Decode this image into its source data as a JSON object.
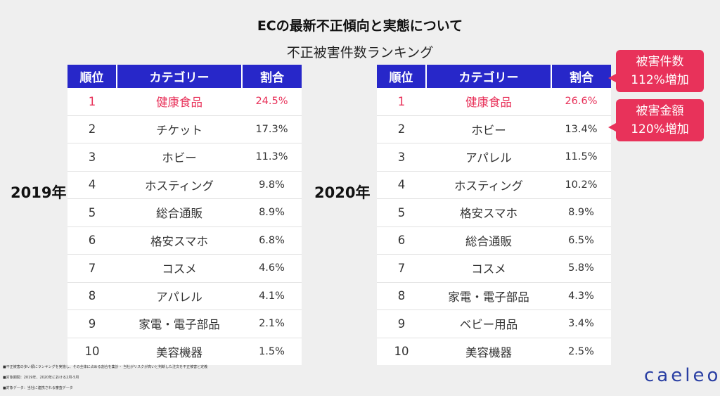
{
  "title": "ECの最新不正傾向と実態について",
  "subtitle": "不正被害件数ランキング",
  "headers": {
    "rank": "順位",
    "category": "カテゴリー",
    "ratio": "割合"
  },
  "year2019": {
    "label": "2019年",
    "rows": [
      {
        "rank": "1",
        "category": "健康食品",
        "ratio": "24.5%"
      },
      {
        "rank": "2",
        "category": "チケット",
        "ratio": "17.3%"
      },
      {
        "rank": "3",
        "category": "ホビー",
        "ratio": "11.3%"
      },
      {
        "rank": "4",
        "category": "ホスティング",
        "ratio": "9.8%"
      },
      {
        "rank": "5",
        "category": "総合通販",
        "ratio": "8.9%"
      },
      {
        "rank": "6",
        "category": "格安スマホ",
        "ratio": "6.8%"
      },
      {
        "rank": "7",
        "category": "コスメ",
        "ratio": "4.6%"
      },
      {
        "rank": "8",
        "category": "アパレル",
        "ratio": "4.1%"
      },
      {
        "rank": "9",
        "category": "家電・電子部品",
        "ratio": "2.1%"
      },
      {
        "rank": "10",
        "category": "美容機器",
        "ratio": "1.5%"
      }
    ]
  },
  "year2020": {
    "label": "2020年",
    "rows": [
      {
        "rank": "1",
        "category": "健康食品",
        "ratio": "26.6%"
      },
      {
        "rank": "2",
        "category": "ホビー",
        "ratio": "13.4%"
      },
      {
        "rank": "3",
        "category": "アパレル",
        "ratio": "11.5%"
      },
      {
        "rank": "4",
        "category": "ホスティング",
        "ratio": "10.2%"
      },
      {
        "rank": "5",
        "category": "格安スマホ",
        "ratio": "8.9%"
      },
      {
        "rank": "6",
        "category": "総合通販",
        "ratio": "6.5%"
      },
      {
        "rank": "7",
        "category": "コスメ",
        "ratio": "5.8%"
      },
      {
        "rank": "8",
        "category": "家電・電子部品",
        "ratio": "4.3%"
      },
      {
        "rank": "9",
        "category": "ベビー用品",
        "ratio": "3.4%"
      },
      {
        "rank": "10",
        "category": "美容機器",
        "ratio": "2.5%"
      }
    ]
  },
  "callouts": [
    {
      "line1": "被害件数",
      "line2": "112%増加"
    },
    {
      "line1": "被害金額",
      "line2": "120%増加"
    }
  ],
  "notes": [
    "■不正被害の多い順にランキングを実施し、その全体に占める割合を集計・ 当社がリスクが高いと判断した注文を不正被害と定義",
    "■対象期間：2019年、2020年における2月-5月",
    "■対象データ：当社に連携される審査データ"
  ],
  "logo": "caeleo",
  "colors": {
    "header": "#2727c9",
    "accent": "#e8325a",
    "logo": "#2a3fa3"
  }
}
